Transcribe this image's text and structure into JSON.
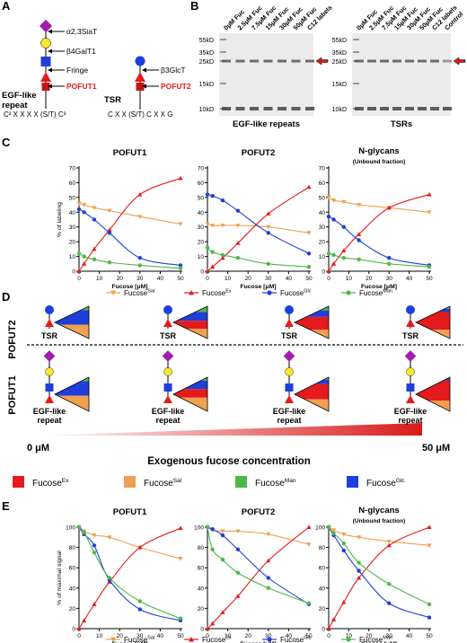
{
  "panels": {
    "A": "A",
    "B": "B",
    "C": "C",
    "D": "D",
    "E": "E"
  },
  "panel_a": {
    "egf_label_1": "EGF-like",
    "egf_label_2": "repeat",
    "egf_seq": "C² X X X X (S/T) C³",
    "tsr_label": "TSR",
    "tsr_seq": "C X X (S/T) C X X G",
    "enzymes_egf": [
      "α2,3SiaT",
      "β4GalT1",
      "Fringe",
      "POFUT1"
    ],
    "enzymes_tsr": [
      "β3GlcT",
      "POFUT2"
    ]
  },
  "panel_b": {
    "lanes": [
      "0μM Fuc",
      "2.5μM Fuc",
      "7.5μM Fuc",
      "15μM Fuc",
      "30μM Fuc",
      "50μM Fuc",
      "C12 labels",
      "Control"
    ],
    "mw_markers": [
      "55kD",
      "35kD",
      "25kD",
      "15kD",
      "10kD"
    ],
    "gel1_caption": "EGF-like repeats",
    "gel2_caption": "TSRs"
  },
  "panel_d": {
    "row1": "POFUT2",
    "row2": "POFUT1",
    "tsr": "TSR",
    "egf_1": "EGF-like",
    "egf_2": "repeat",
    "conc_start": "0 μM",
    "conc_end": "50 μM",
    "axis_title": "Exogenous fucose concentration",
    "legend": [
      {
        "base": "Fucose",
        "sup": "Ex",
        "color": "#e41a1c"
      },
      {
        "base": "Fucose",
        "sup": "Sal",
        "color": "#f0a050"
      },
      {
        "base": "Fucose",
        "sup": "Man",
        "color": "#4db848"
      },
      {
        "base": "Fucose",
        "sup": "Glc",
        "color": "#1f3fdc"
      }
    ]
  },
  "colors": {
    "sal": "#f0a050",
    "ex": "#e41a1c",
    "glc": "#1f3fdc",
    "man": "#4db848"
  },
  "chart_data": [
    {
      "type": "line",
      "panel": "C",
      "title": "POFUT1",
      "subtitle": "",
      "xlabel": "Fucose [μM]",
      "ylabel": "% of labeling",
      "xlim": [
        0,
        50
      ],
      "ylim": [
        0,
        70
      ],
      "xticks": [
        0,
        10,
        20,
        30,
        40,
        50
      ],
      "yticks": [
        0,
        10,
        20,
        30,
        40,
        50,
        60,
        70
      ],
      "x": [
        0,
        2.5,
        7.5,
        15,
        30,
        50
      ],
      "series": [
        {
          "name": "Sal",
          "values": [
            46,
            45,
            43,
            41,
            37,
            32
          ]
        },
        {
          "name": "Ex",
          "values": [
            0,
            5,
            15,
            28,
            52,
            63
          ]
        },
        {
          "name": "Glc",
          "values": [
            42,
            40,
            35,
            26,
            9,
            4
          ]
        },
        {
          "name": "Man",
          "values": [
            12,
            10,
            8,
            6,
            4,
            2
          ]
        }
      ]
    },
    {
      "type": "line",
      "panel": "C",
      "title": "POFUT2",
      "subtitle": "",
      "xlabel": "Fucose [μM]",
      "ylabel": "",
      "xlim": [
        0,
        50
      ],
      "ylim": [
        0,
        70
      ],
      "xticks": [
        0,
        10,
        20,
        30,
        40,
        50
      ],
      "yticks": [
        0,
        10,
        20,
        30,
        40,
        50,
        60,
        70
      ],
      "x": [
        0,
        2.5,
        7.5,
        15,
        30,
        50
      ],
      "series": [
        {
          "name": "Sal",
          "values": [
            32,
            31,
            31,
            31,
            30,
            26
          ]
        },
        {
          "name": "Ex",
          "values": [
            0,
            3,
            9,
            19,
            39,
            57
          ]
        },
        {
          "name": "Glc",
          "values": [
            52,
            51,
            48,
            41,
            26,
            12
          ]
        },
        {
          "name": "Man",
          "values": [
            16,
            13,
            11,
            9,
            5,
            3
          ]
        }
      ]
    },
    {
      "type": "line",
      "panel": "C",
      "title": "N-glycans",
      "subtitle": "(Unbound fraction)",
      "xlabel": "Fucose [μM]",
      "ylabel": "",
      "xlim": [
        0,
        50
      ],
      "ylim": [
        0,
        70
      ],
      "xticks": [
        0,
        10,
        20,
        30,
        40,
        50
      ],
      "yticks": [
        0,
        10,
        20,
        30,
        40,
        50,
        60,
        70
      ],
      "x": [
        0,
        2.5,
        7.5,
        15,
        30,
        50
      ],
      "series": [
        {
          "name": "Sal",
          "values": [
            50,
            48,
            47,
            45,
            43,
            40
          ]
        },
        {
          "name": "Ex",
          "values": [
            0,
            5,
            14,
            25,
            43,
            52
          ]
        },
        {
          "name": "Glc",
          "values": [
            37,
            35,
            30,
            21,
            9,
            4
          ]
        },
        {
          "name": "Man",
          "values": [
            12,
            11,
            9,
            8,
            5,
            3
          ]
        }
      ]
    },
    {
      "type": "line",
      "panel": "E",
      "title": "POFUT1",
      "subtitle": "",
      "xlabel": "Fucose [μM]",
      "ylabel": "% of maximal signal",
      "xlim": [
        0,
        50
      ],
      "ylim": [
        0,
        100
      ],
      "xticks": [
        0,
        10,
        20,
        30,
        40,
        50
      ],
      "yticks": [
        0,
        20,
        40,
        60,
        80,
        100
      ],
      "x": [
        0,
        2.5,
        7.5,
        15,
        30,
        50
      ],
      "series": [
        {
          "name": "Sal",
          "values": [
            100,
            96,
            92,
            90,
            80,
            69
          ]
        },
        {
          "name": "Ex",
          "values": [
            0,
            8,
            24,
            46,
            80,
            99
          ]
        },
        {
          "name": "Glc",
          "values": [
            100,
            93,
            82,
            48,
            19,
            8
          ]
        },
        {
          "name": "Man",
          "values": [
            100,
            95,
            75,
            50,
            27,
            10
          ]
        }
      ]
    },
    {
      "type": "line",
      "panel": "E",
      "title": "POFUT2",
      "subtitle": "",
      "xlabel": "Fucose [μM]",
      "ylabel": "",
      "xlim": [
        0,
        50
      ],
      "ylim": [
        0,
        100
      ],
      "xticks": [
        0,
        10,
        20,
        30,
        40,
        50
      ],
      "yticks": [
        0,
        20,
        40,
        60,
        80,
        100
      ],
      "x": [
        0,
        2.5,
        7.5,
        15,
        30,
        50
      ],
      "series": [
        {
          "name": "Sal",
          "values": [
            100,
            97,
            96,
            96,
            93,
            83
          ]
        },
        {
          "name": "Ex",
          "values": [
            0,
            5,
            16,
            32,
            67,
            100
          ]
        },
        {
          "name": "Glc",
          "values": [
            100,
            98,
            92,
            78,
            50,
            24
          ]
        },
        {
          "name": "Man",
          "values": [
            100,
            78,
            68,
            55,
            40,
            25
          ]
        }
      ]
    },
    {
      "type": "line",
      "panel": "E",
      "title": "N-glycans",
      "subtitle": "(Unbound fraction)",
      "xlabel": "Fucose [μM]",
      "ylabel": "",
      "xlim": [
        0,
        50
      ],
      "ylim": [
        0,
        100
      ],
      "xticks": [
        0,
        10,
        20,
        30,
        40,
        50
      ],
      "yticks": [
        0,
        20,
        40,
        60,
        80,
        100
      ],
      "x": [
        0,
        2.5,
        7.5,
        15,
        30,
        50
      ],
      "series": [
        {
          "name": "Sal",
          "values": [
            100,
            97,
            93,
            90,
            86,
            82
          ]
        },
        {
          "name": "Ex",
          "values": [
            0,
            9,
            26,
            50,
            82,
            100
          ]
        },
        {
          "name": "Glc",
          "values": [
            100,
            92,
            77,
            57,
            25,
            11
          ]
        },
        {
          "name": "Man",
          "values": [
            100,
            94,
            84,
            65,
            44,
            24
          ]
        }
      ]
    }
  ]
}
